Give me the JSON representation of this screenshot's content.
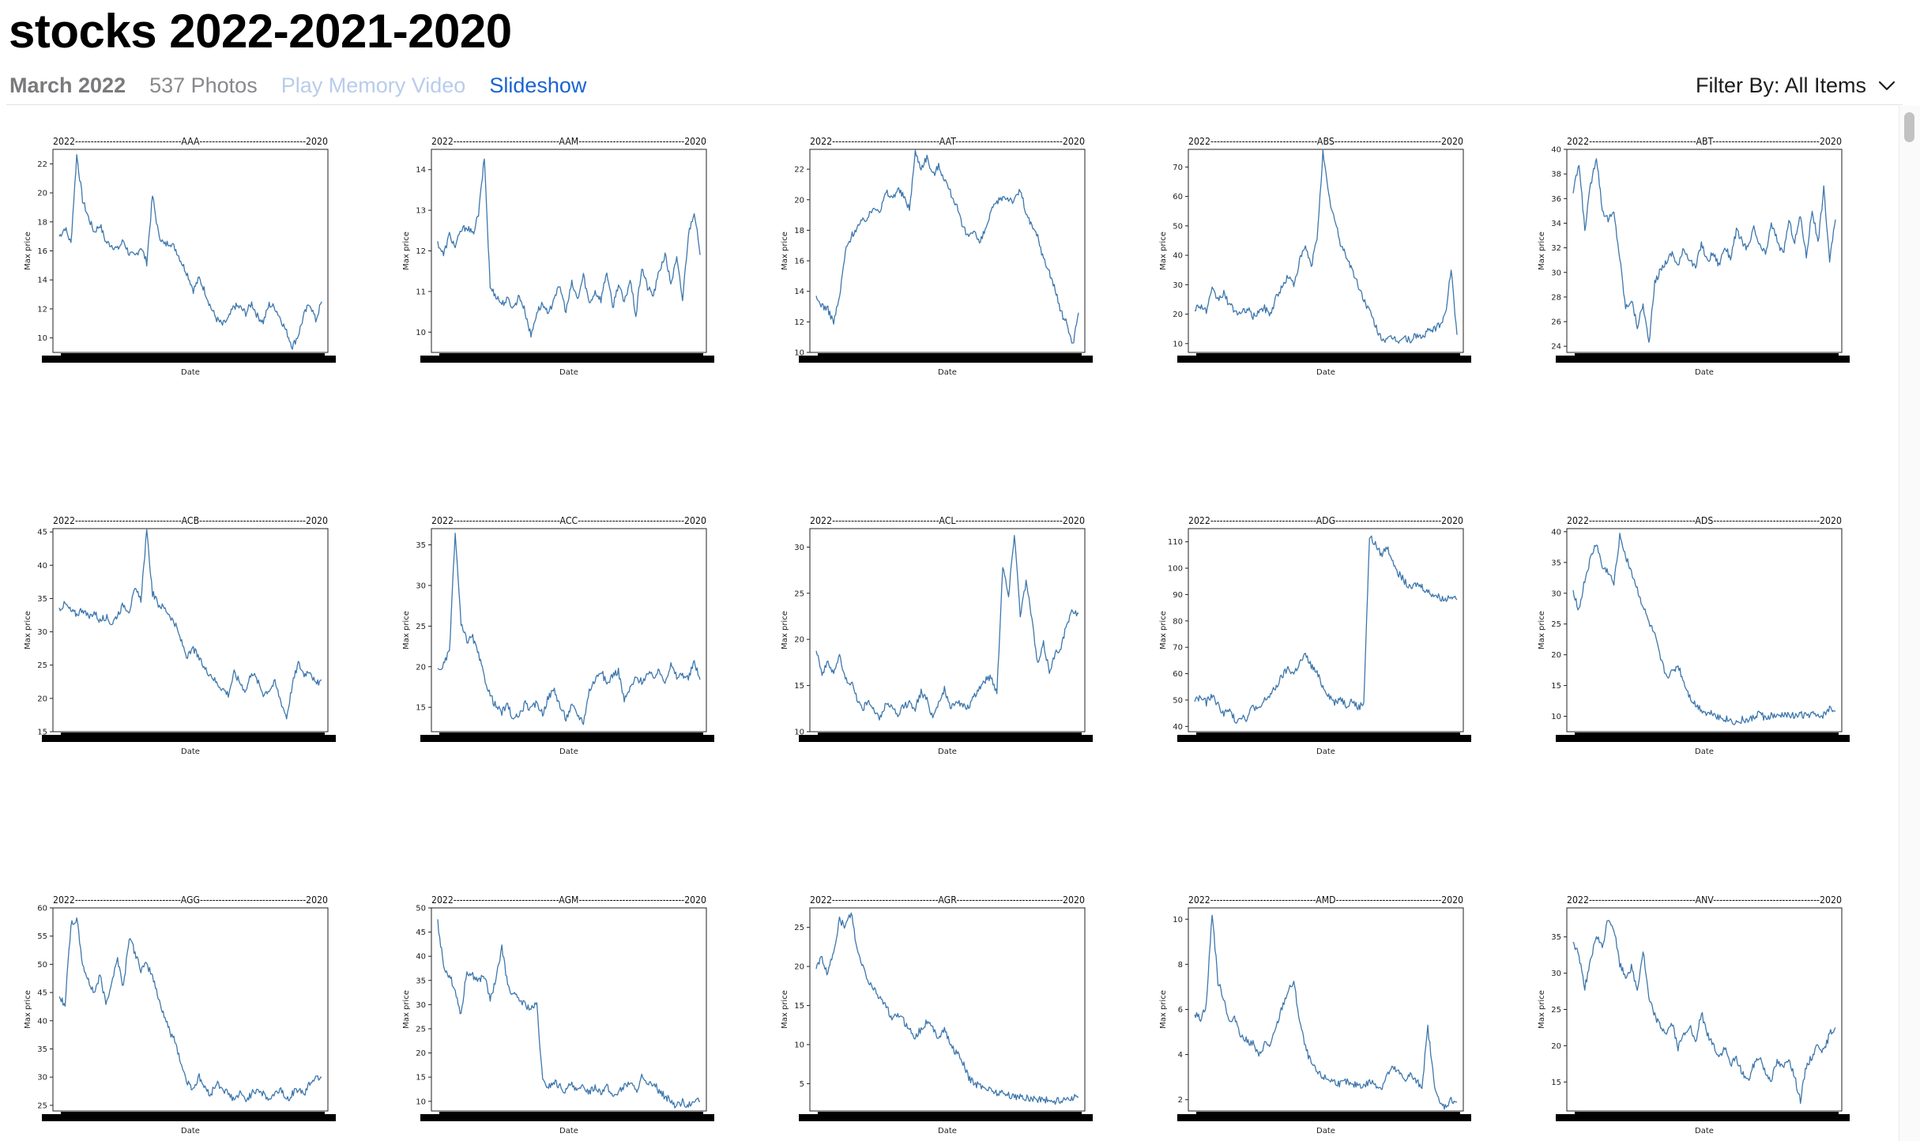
{
  "album": {
    "title": "stocks 2022-2021-2020"
  },
  "subheader": {
    "date": "March 2022",
    "count": "537 Photos",
    "play_memory_video": "Play Memory Video",
    "slideshow": "Slideshow"
  },
  "filter": {
    "label": "Filter By: All Items",
    "icon": "chevron-down-icon"
  },
  "chart_style": {
    "line_color": "#3e77ac",
    "prefix": "2022",
    "suffix": "2020",
    "xlabel": "Date",
    "ylabel": "Max price"
  },
  "charts": [
    {
      "ticker": "AAA",
      "ylim": [
        9,
        23
      ],
      "yticks": [
        10,
        12,
        14,
        16,
        18,
        20,
        22
      ],
      "series": [
        17,
        17.6,
        16.5,
        22.6,
        19.5,
        18.3,
        17.3,
        17.8,
        16.6,
        16.4,
        16.1,
        16.7,
        15.8,
        15.6,
        16.3,
        15.2,
        19.8,
        17.2,
        16.4,
        16.6,
        16.1,
        15.2,
        14.4,
        13.3,
        14.1,
        13.2,
        12.1,
        11.3,
        10.9,
        11.3,
        12.2,
        12.1,
        11.7,
        12.4,
        11.5,
        11.1,
        12.3,
        12.1,
        11.3,
        10.4,
        9.4,
        10.2,
        11.6,
        12.4,
        11.2,
        12.5
      ]
    },
    {
      "ticker": "AAM",
      "ylim": [
        9.5,
        14.5
      ],
      "yticks": [
        10,
        11,
        12,
        13,
        14
      ],
      "series": [
        12.2,
        11.9,
        12.4,
        12.1,
        12.5,
        12.6,
        12.4,
        12.9,
        14.3,
        11.1,
        10.9,
        10.7,
        10.8,
        10.6,
        10.9,
        10.5,
        9.9,
        10.5,
        10.7,
        10.4,
        10.9,
        11.1,
        10.5,
        11.2,
        10.8,
        11.4,
        10.7,
        11.0,
        10.8,
        11.5,
        10.6,
        11.2,
        10.7,
        11.3,
        10.4,
        11.6,
        11.1,
        10.9,
        11.5,
        11.9,
        11.2,
        11.8,
        10.8,
        12.4,
        13.0,
        11.9
      ]
    },
    {
      "ticker": "AAT",
      "ylim": [
        10,
        23.3
      ],
      "yticks": [
        10,
        12,
        14,
        16,
        18,
        20,
        22
      ],
      "series": [
        13.5,
        13.1,
        12.8,
        12.0,
        13.6,
        16.6,
        17.6,
        18.2,
        18.6,
        18.9,
        19.6,
        19.3,
        20.5,
        20.1,
        20.7,
        20.2,
        19.4,
        23.1,
        22.1,
        22.8,
        21.6,
        22.2,
        21.4,
        20.5,
        19.7,
        18.3,
        17.6,
        18.1,
        17.1,
        18.0,
        19.2,
        19.8,
        20.2,
        20.1,
        19.9,
        20.7,
        19.1,
        18.2,
        17.6,
        16.1,
        15.3,
        14.1,
        12.6,
        11.9,
        10.5,
        12.6
      ]
    },
    {
      "ticker": "ABS",
      "ylim": [
        7,
        76
      ],
      "yticks": [
        10,
        20,
        30,
        40,
        50,
        60,
        70
      ],
      "series": [
        22,
        23,
        21,
        28,
        25,
        27,
        23,
        21,
        20,
        22,
        19,
        21,
        22,
        20,
        26,
        29,
        33,
        30,
        38,
        43,
        36,
        46,
        75,
        60,
        52,
        44,
        40,
        35,
        30,
        25,
        21,
        16,
        12,
        11,
        12,
        11,
        12,
        11,
        13,
        12,
        14,
        15,
        16,
        20,
        35,
        13
      ]
    },
    {
      "ticker": "ABT",
      "ylim": [
        23.5,
        40
      ],
      "yticks": [
        24,
        26,
        28,
        30,
        32,
        34,
        36,
        38,
        40
      ],
      "series": [
        36.5,
        38.8,
        33.5,
        37.1,
        39.5,
        35.1,
        34.3,
        34.8,
        31.2,
        27.1,
        27.8,
        25.6,
        27.4,
        24.2,
        29.1,
        30.2,
        30.9,
        31.6,
        30.5,
        31.9,
        31.1,
        30.3,
        32.4,
        30.9,
        31.6,
        30.6,
        32.1,
        31.2,
        33.4,
        32.5,
        31.9,
        33.6,
        32.1,
        31.5,
        33.9,
        32.7,
        31.4,
        34.2,
        32.5,
        34.6,
        31.3,
        35.1,
        32.4,
        36.8,
        31.0,
        34.3
      ]
    },
    {
      "ticker": "ACB",
      "ylim": [
        15,
        45.5
      ],
      "yticks": [
        15,
        20,
        25,
        30,
        35,
        40,
        45
      ],
      "series": [
        33.5,
        34.2,
        33.1,
        32.6,
        33.5,
        32.1,
        33.0,
        31.6,
        32.3,
        31.2,
        32.6,
        34.1,
        33.2,
        36.3,
        34.8,
        45.0,
        35.8,
        34.1,
        33.6,
        32.5,
        30.8,
        28.4,
        26.1,
        27.5,
        25.9,
        24.4,
        23.6,
        22.3,
        21.5,
        20.6,
        23.8,
        22.4,
        21.1,
        24.1,
        22.6,
        20.7,
        21.3,
        22.4,
        19.6,
        17.2,
        22.1,
        25.3,
        23.6,
        24.3,
        22.0,
        22.8
      ]
    },
    {
      "ticker": "ACC",
      "ylim": [
        12,
        37
      ],
      "yticks": [
        15,
        20,
        25,
        30,
        35
      ],
      "series": [
        19.5,
        20.2,
        21.8,
        36.5,
        25.1,
        23.2,
        23.6,
        21.4,
        18.7,
        16.5,
        15.1,
        14.4,
        15.3,
        13.4,
        14.1,
        15.4,
        14.7,
        15.6,
        14.2,
        16.3,
        17.2,
        15.1,
        13.6,
        15.2,
        14.1,
        13.2,
        17.1,
        18.4,
        19.6,
        17.8,
        19.0,
        19.5,
        15.8,
        17.3,
        18.6,
        18.2,
        19.1,
        18.8,
        19.4,
        18.3,
        20.2,
        18.7,
        19.1,
        18.5,
        20.6,
        18.4
      ]
    },
    {
      "ticker": "ACL",
      "ylim": [
        10,
        32
      ],
      "yticks": [
        10,
        15,
        20,
        25,
        30
      ],
      "series": [
        19.1,
        16.3,
        17.4,
        16.5,
        18.2,
        15.6,
        15.4,
        13.6,
        12.4,
        13.5,
        12.1,
        11.4,
        13.2,
        12.6,
        11.6,
        12.8,
        13.1,
        12.6,
        14.3,
        13.4,
        11.6,
        13.2,
        14.6,
        12.4,
        13.5,
        12.8,
        12.6,
        13.6,
        14.8,
        15.6,
        16.0,
        14.2,
        28.1,
        24.6,
        31.6,
        22.8,
        26.2,
        22.2,
        17.2,
        19.5,
        16.6,
        18.4,
        19.3,
        21.6,
        23.1,
        22.8
      ]
    },
    {
      "ticker": "ADG",
      "ylim": [
        38,
        115
      ],
      "yticks": [
        40,
        50,
        60,
        70,
        80,
        90,
        100,
        110
      ],
      "series": [
        50,
        51,
        49,
        52,
        48,
        45,
        46,
        42,
        44,
        43,
        48,
        46,
        50,
        52,
        55,
        59,
        62,
        60,
        64,
        67,
        63,
        60,
        55,
        52,
        49,
        51,
        48,
        50,
        47,
        49,
        112,
        109,
        105,
        108,
        103,
        98,
        95,
        92,
        94,
        93,
        91,
        90,
        89,
        88,
        90,
        88
      ]
    },
    {
      "ticker": "ADS",
      "ylim": [
        7.5,
        40.5
      ],
      "yticks": [
        10,
        15,
        20,
        25,
        30,
        35,
        40
      ],
      "series": [
        30.5,
        27.2,
        32.1,
        35.6,
        38.2,
        34.1,
        33.5,
        31.4,
        39.5,
        36.1,
        33.5,
        30.6,
        27.8,
        25.2,
        23.1,
        19.2,
        16.5,
        17.1,
        18.3,
        15.5,
        13.2,
        11.8,
        11.1,
        10.4,
        10.6,
        9.8,
        9.6,
        9.3,
        8.9,
        9.5,
        9.2,
        9.8,
        10.6,
        9.5,
        10.1,
        9.8,
        10.2,
        10.5,
        9.9,
        10.3,
        10.1,
        10.4,
        9.8,
        10.2,
        11.2,
        10.8
      ]
    },
    {
      "ticker": "AGG",
      "ylim": [
        24,
        60
      ],
      "yticks": [
        25,
        30,
        35,
        40,
        45,
        50,
        55,
        60
      ],
      "series": [
        44,
        43,
        57,
        58,
        50,
        47,
        45,
        48,
        43,
        47,
        51,
        46,
        55,
        52,
        49,
        50,
        48,
        44,
        41,
        38,
        36,
        32,
        29,
        28,
        30,
        28,
        27,
        29,
        28,
        27,
        26,
        27,
        26,
        27,
        28,
        27,
        26,
        27,
        28,
        26,
        27,
        28,
        27,
        29,
        30,
        30
      ]
    },
    {
      "ticker": "AGM",
      "ylim": [
        8,
        50
      ],
      "yticks": [
        10,
        15,
        20,
        25,
        30,
        35,
        40,
        45,
        50
      ],
      "series": [
        47,
        38,
        36,
        33,
        28,
        37,
        36,
        35,
        36,
        31,
        35,
        42,
        34,
        32,
        31,
        30,
        29,
        30,
        14,
        13,
        14,
        13,
        12,
        14,
        12,
        13,
        12,
        13,
        12,
        13,
        11,
        12,
        13,
        14,
        12,
        15,
        13,
        14,
        12,
        11,
        10,
        9,
        10,
        9,
        10,
        10
      ]
    },
    {
      "ticker": "AGR",
      "ylim": [
        1.5,
        27.5
      ],
      "yticks": [
        5,
        10,
        15,
        20,
        25
      ],
      "series": [
        20,
        21,
        19,
        22,
        26,
        25,
        27,
        22,
        20,
        18,
        17,
        16,
        15,
        13,
        14,
        13,
        12,
        11,
        12,
        13,
        12,
        11,
        12,
        10,
        9,
        8,
        6,
        5,
        4.8,
        4.5,
        4.2,
        3.9,
        3.8,
        3.5,
        3.4,
        3.3,
        3.2,
        3.1,
        3.0,
        3.0,
        2.8,
        2.7,
        2.9,
        3.1,
        3.2,
        3.3
      ]
    },
    {
      "ticker": "AMD",
      "ylim": [
        1.5,
        10.5
      ],
      "yticks": [
        2,
        4,
        6,
        8,
        10
      ],
      "series": [
        5.8,
        5.6,
        6.2,
        10.3,
        7.2,
        6.5,
        5.4,
        5.6,
        4.8,
        4.6,
        4.5,
        3.9,
        4.5,
        4.4,
        5.2,
        6.1,
        6.8,
        7.2,
        5.5,
        4.3,
        3.6,
        3.2,
        3.0,
        2.9,
        2.8,
        2.7,
        2.8,
        2.6,
        2.7,
        2.6,
        2.8,
        2.7,
        2.5,
        3.1,
        3.4,
        3.2,
        2.9,
        3.1,
        2.8,
        2.6,
        5.2,
        2.9,
        1.8,
        1.7,
        2.0,
        1.9
      ]
    },
    {
      "ticker": "ANV",
      "ylim": [
        11,
        39
      ],
      "yticks": [
        15,
        20,
        25,
        30,
        35
      ],
      "series": [
        34.2,
        32.5,
        28.1,
        31.6,
        35.2,
        33.4,
        37.6,
        36.1,
        31.2,
        29.5,
        30.8,
        27.6,
        33.1,
        26.4,
        24.2,
        22.6,
        21.8,
        23.1,
        19.6,
        21.5,
        22.8,
        20.1,
        24.6,
        21.5,
        20.2,
        18.4,
        19.6,
        17.5,
        18.2,
        16.3,
        15.1,
        17.4,
        18.6,
        16.2,
        15.4,
        17.8,
        16.9,
        18.4,
        15.6,
        12.5,
        17.2,
        18.5,
        20.3,
        19.1,
        21.6,
        22.5
      ]
    }
  ]
}
